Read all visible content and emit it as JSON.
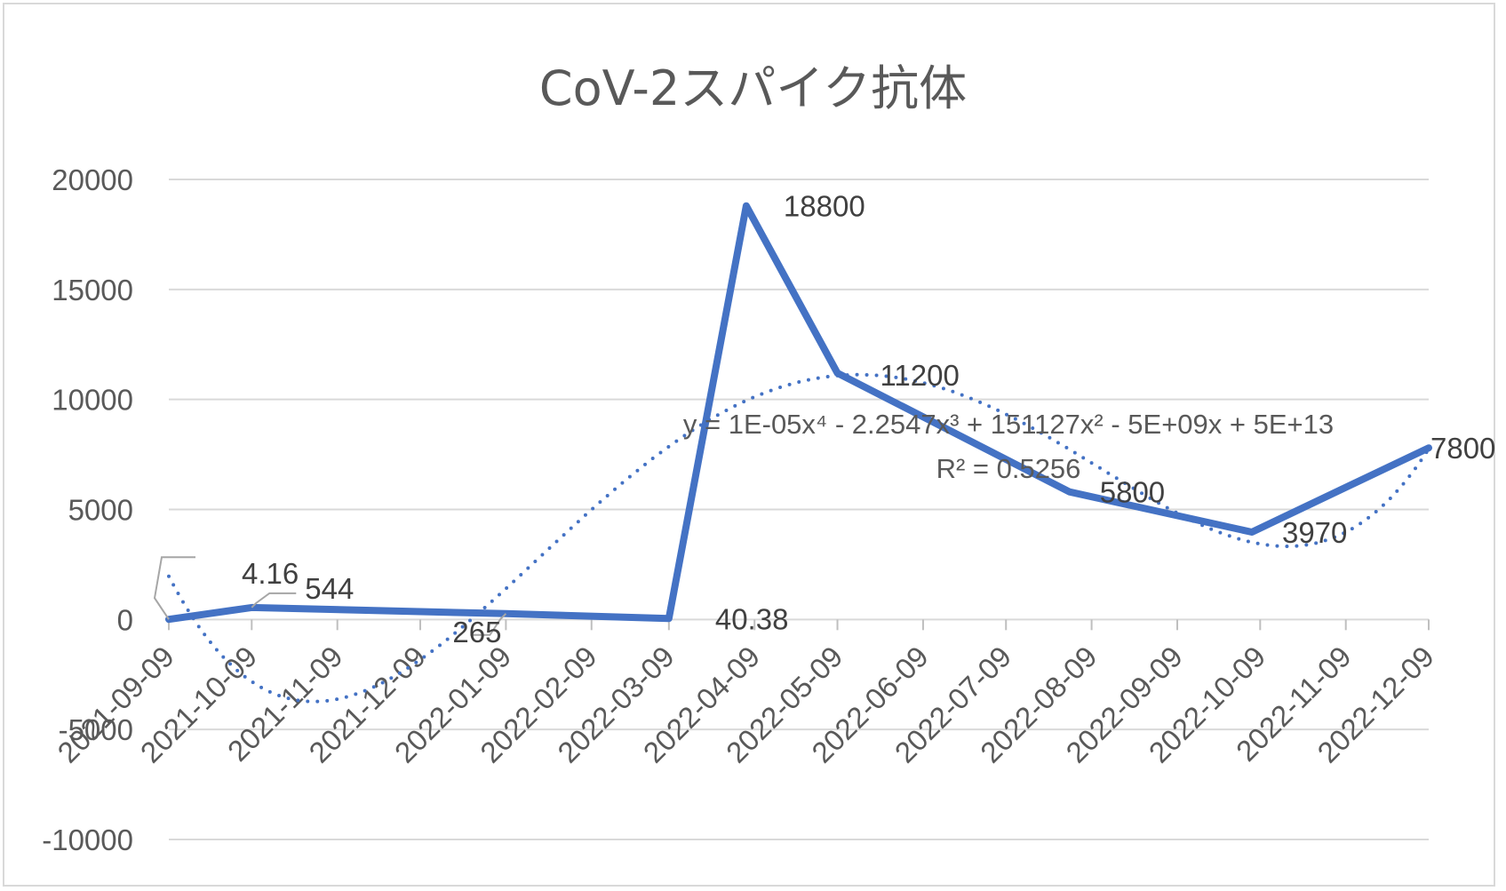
{
  "chart_data": {
    "type": "line",
    "title": "CoV-2スパイク抗体",
    "xlabel": "",
    "ylabel": "",
    "ylim": [
      -10000,
      20000
    ],
    "y_ticks": [
      "20000",
      "15000",
      "10000",
      "5000",
      "0",
      "-5000",
      "-10000"
    ],
    "x_tick_labels": [
      "2021-09-09",
      "2021-10-09",
      "2021-11-09",
      "2021-12-09",
      "2022-01-09",
      "2022-02-09",
      "2022-03-09",
      "2022-04-09",
      "2022-05-09",
      "2022-06-09",
      "2022-07-09",
      "2022-08-09",
      "2022-09-09",
      "2022-10-09",
      "2022-11-09",
      "2022-12-09"
    ],
    "grid": true,
    "legend": "none",
    "series": [
      {
        "color": "#4472c4",
        "points": [
          {
            "x": "2021-09-09",
            "y": 4.16,
            "label": "4.16"
          },
          {
            "x": "2021-10-09",
            "y": 544,
            "label": "544"
          },
          {
            "x": "2022-01-09",
            "y": 265,
            "label": "265"
          },
          {
            "x": "2022-03-09",
            "y": 40.38,
            "label": "40.38"
          },
          {
            "x": "2022-04-06",
            "y": 18800,
            "label": "18800"
          },
          {
            "x": "2022-05-09",
            "y": 11200,
            "label": "11200"
          },
          {
            "x": "2022-08-01",
            "y": 5800,
            "label": "5800"
          },
          {
            "x": "2022-10-06",
            "y": 3970,
            "label": "3970"
          },
          {
            "x": "2022-12-09",
            "y": 7800,
            "label": "7800"
          }
        ]
      }
    ],
    "trendline": {
      "type": "polynomial",
      "order": 4,
      "style": "dotted",
      "color": "#4472c4",
      "equation": "y = 1E-05x⁴ - 2.2547x³ + 151127x² - 5E+09x + 5E+13",
      "r_squared": "R² = 0.5256"
    }
  }
}
